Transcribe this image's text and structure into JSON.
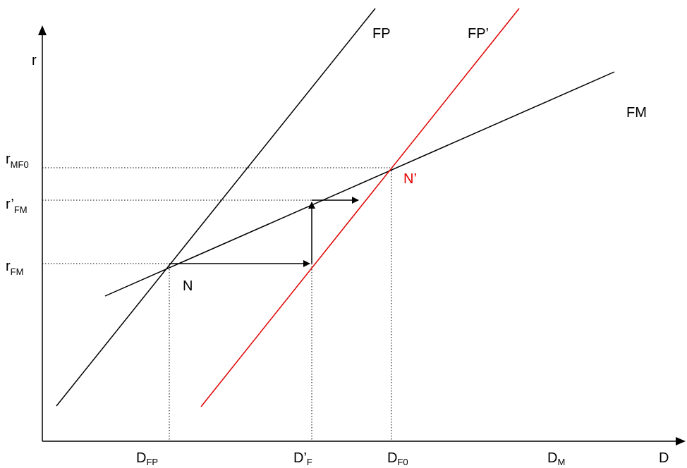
{
  "diagram": {
    "axes": {
      "y_label": "r",
      "x_label": "D"
    },
    "curves": {
      "fp": "FP",
      "fp_prime": "FP’",
      "fm": "FM"
    },
    "points": {
      "n": "N",
      "n_prime": "N’"
    },
    "y_ticks": {
      "r_mf0": {
        "main": "r",
        "sub": "MF0"
      },
      "r_prime_fm": {
        "main": "r’",
        "sub": "FM"
      },
      "r_fm": {
        "main": "r",
        "sub": "FM"
      }
    },
    "x_ticks": {
      "d_fp": {
        "main": "D",
        "sub": "FP"
      },
      "d_prime_f": {
        "main": "D’",
        "sub": "F"
      },
      "d_f0": {
        "main": "D",
        "sub": "F0"
      },
      "d_m": {
        "main": "D",
        "sub": "M"
      }
    },
    "colors": {
      "line": "#000000",
      "shifted_curve": "#e00000"
    }
  }
}
